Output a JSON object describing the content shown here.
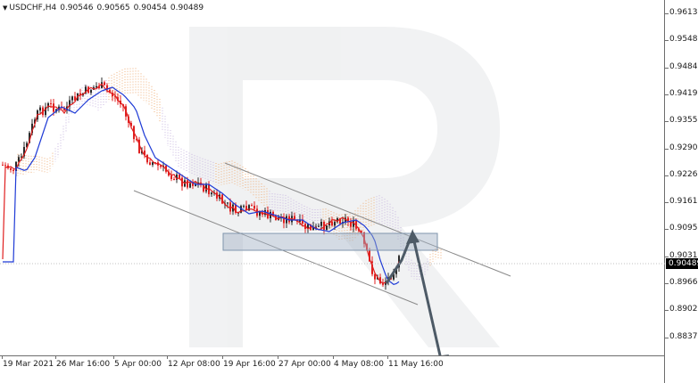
{
  "header": {
    "symbol_label": "USDCHF,H4",
    "open": "0.90546",
    "high": "0.90565",
    "low": "0.90454",
    "close": "0.90489"
  },
  "y_axis": {
    "labels": [
      "0.96130",
      "0.95485",
      "0.94840",
      "0.94195",
      "0.93550",
      "0.92905",
      "0.92260",
      "0.91615",
      "0.90955",
      "0.90310",
      "0.89665",
      "0.89020",
      "0.88375"
    ]
  },
  "x_axis": {
    "labels": [
      "19 Mar 2021",
      "26 Mar 16:00",
      "5 Apr 00:00",
      "12 Apr 08:00",
      "19 Apr 16:00",
      "27 Apr 00:00",
      "4 May 08:00",
      "11 May 16:00"
    ]
  },
  "current_price": "0.90489",
  "colors": {
    "bull_candle": "#2a2a2a",
    "bear_candle": "#e02020",
    "tenkan": "#e02020",
    "kijun": "#1f3bd6",
    "cloud_a": "#f0b07a",
    "cloud_b": "#c8b6e0",
    "channel": "#8a8a8a",
    "zone": "#9fb0c4",
    "forecast_arrow": "#4d5a66"
  }
}
